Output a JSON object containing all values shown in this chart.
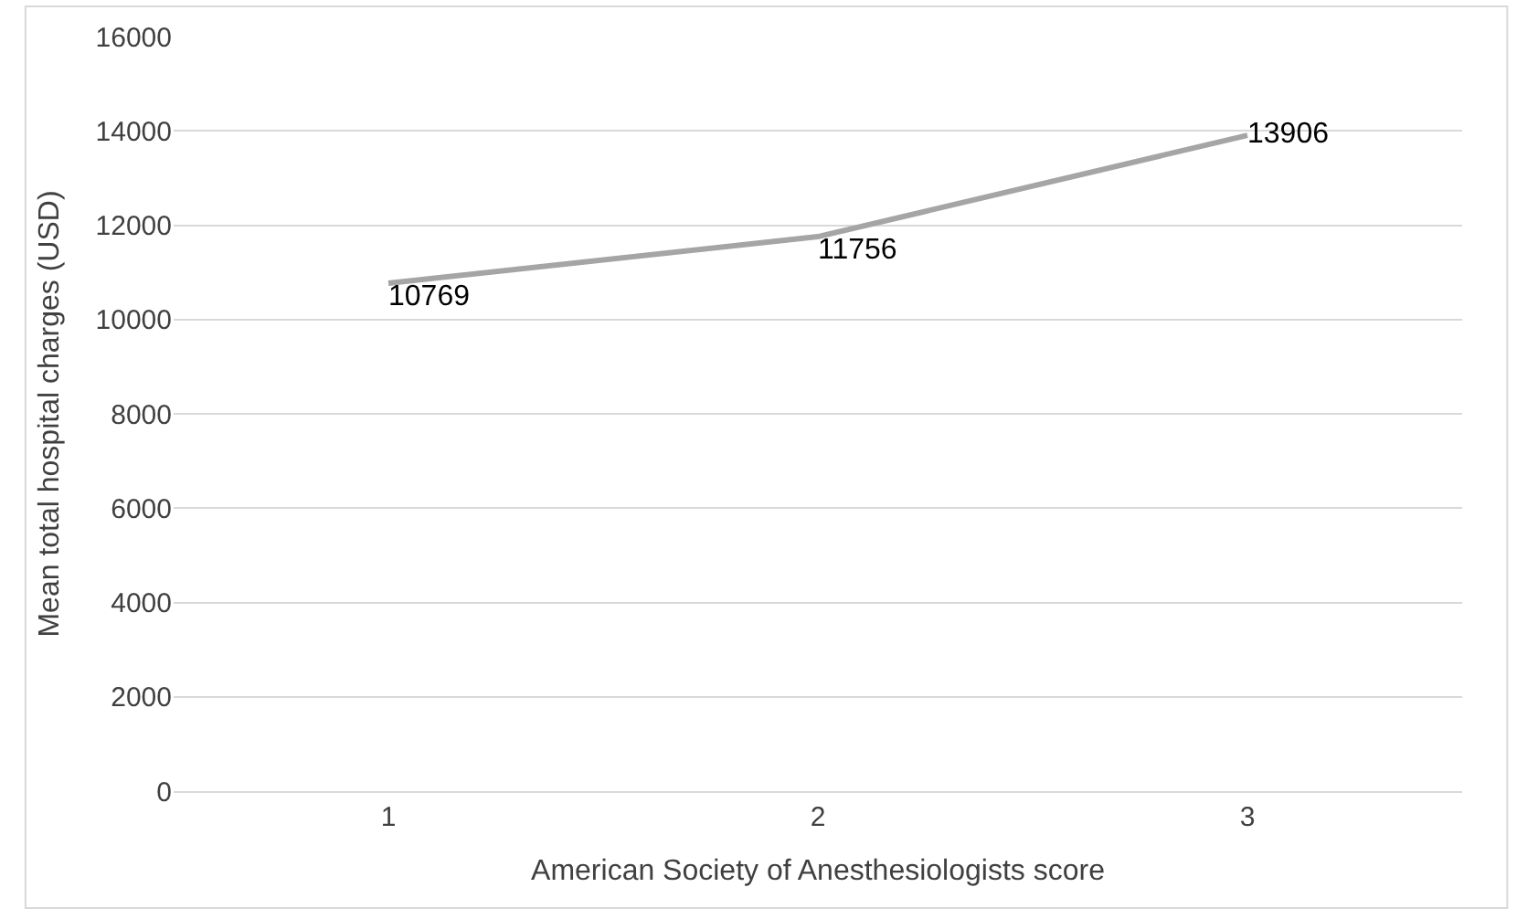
{
  "chart_data": {
    "type": "line",
    "xlabel": "American Society of Anesthesiologists score",
    "ylabel": "Mean total hospital charges (USD)",
    "categories": [
      "1",
      "2",
      "3"
    ],
    "series": [
      {
        "color": "#a5a5a5",
        "values": [
          10769,
          11756,
          13906
        ]
      }
    ],
    "ylim": [
      0,
      16000
    ],
    "yticks": [
      0,
      2000,
      4000,
      6000,
      8000,
      10000,
      12000,
      14000,
      16000
    ],
    "grid": "y",
    "marker": "none",
    "line_style": "solid",
    "data_labels": true
  }
}
